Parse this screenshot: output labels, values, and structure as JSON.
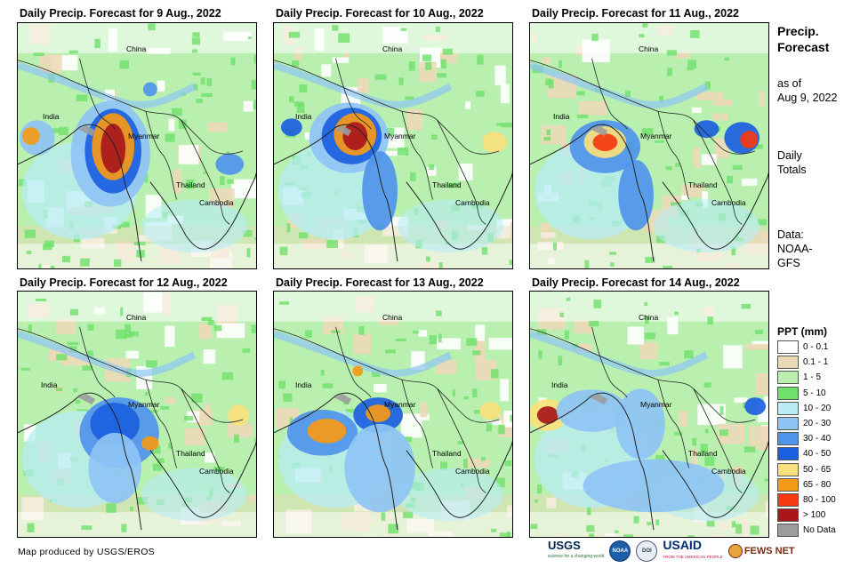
{
  "panels": [
    {
      "title": "Daily Precip. Forecast for 9 Aug., 2022",
      "scenario": 0
    },
    {
      "title": "Daily Precip. Forecast for 10 Aug., 2022",
      "scenario": 1
    },
    {
      "title": "Daily Precip. Forecast for 11 Aug., 2022",
      "scenario": 2
    },
    {
      "title": "Daily Precip. Forecast for 12 Aug., 2022",
      "scenario": 3
    },
    {
      "title": "Daily Precip. Forecast for 13 Aug., 2022",
      "scenario": 4
    },
    {
      "title": "Daily Precip. Forecast for 14 Aug., 2022",
      "scenario": 5
    }
  ],
  "places": {
    "china": "China",
    "india": "India",
    "myanmar": "Myanmar",
    "thailand": "Thailand",
    "cambodia": "Cambodia"
  },
  "side": {
    "title_line1": "Precip.",
    "title_line2": "Forecast",
    "asof_line1": "as of",
    "asof_line2": "Aug 9, 2022",
    "daily_line1": "Daily",
    "daily_line2": "Totals",
    "data_line1": "Data:",
    "data_line2": "NOAA-",
    "data_line3": "GFS"
  },
  "legend": {
    "title": "PPT (mm)",
    "items": [
      {
        "label": "0 - 0.1",
        "color": "#ffffff"
      },
      {
        "label": "0.1 - 1",
        "color": "#ecd9b8"
      },
      {
        "label": "1 - 5",
        "color": "#b9f0b0"
      },
      {
        "label": "5 - 10",
        "color": "#6fe06a"
      },
      {
        "label": "10 - 20",
        "color": "#b8ecf5"
      },
      {
        "label": "20 - 30",
        "color": "#8ec4f4"
      },
      {
        "label": "30 - 40",
        "color": "#4f94ea"
      },
      {
        "label": "40 - 50",
        "color": "#1c5fe0"
      },
      {
        "label": "50 - 65",
        "color": "#f8e17c"
      },
      {
        "label": "65 - 80",
        "color": "#f59a16"
      },
      {
        "label": "80 - 100",
        "color": "#f53a10"
      },
      {
        "label": "> 100",
        "color": "#a8161a"
      },
      {
        "label": "No Data",
        "color": "#9c9c9c"
      }
    ]
  },
  "credit": "Map produced by USGS/EROS",
  "logos": {
    "usgs": "USGS",
    "usgs_tag": "science for a changing world",
    "noaa": "NOAA",
    "doi": "DOI",
    "usaid": "USAID",
    "usaid_tag": "FROM THE AMERICAN PEOPLE",
    "fews": "FEWS NET"
  }
}
